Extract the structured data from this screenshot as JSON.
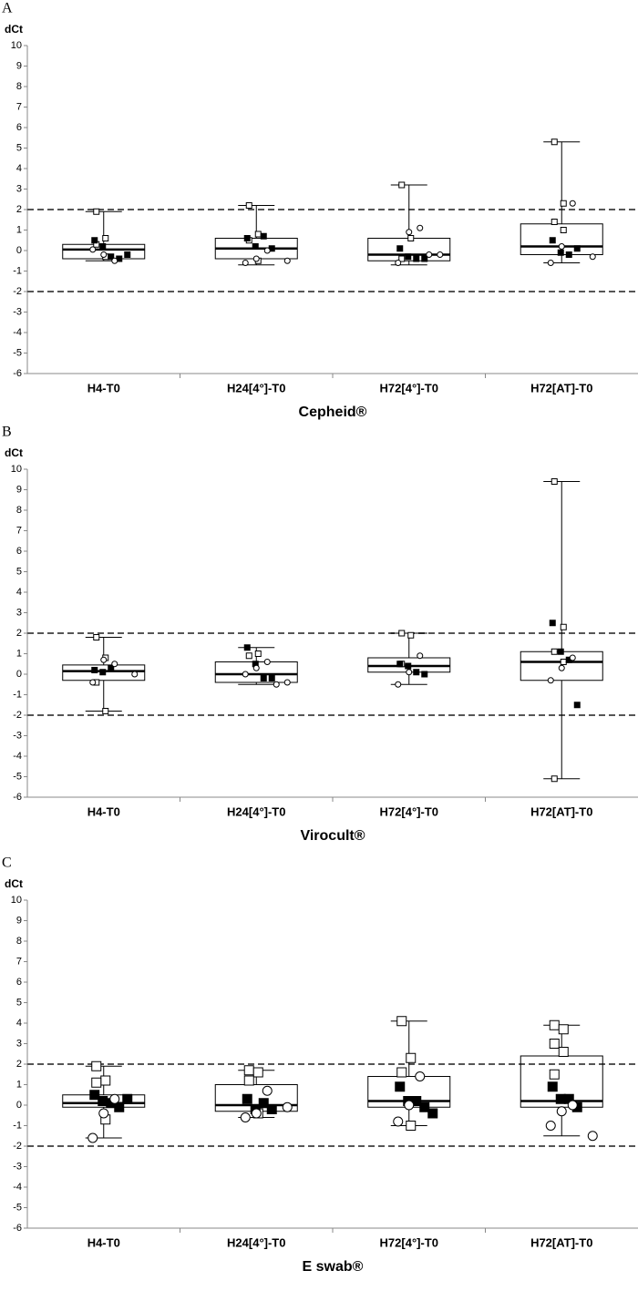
{
  "chart_data": [
    {
      "type": "box",
      "label": "A",
      "y_label": "dCt",
      "title": "Cepheid®",
      "categories": [
        "H4-T0",
        "H24[4°]-T0",
        "H72[4°]-T0",
        "H72[AT]-T0"
      ],
      "ylim": [
        -6,
        10
      ],
      "yticks": [
        -6,
        -5,
        -4,
        -3,
        -2,
        -1,
        0,
        1,
        2,
        3,
        4,
        5,
        6,
        7,
        8,
        9,
        10
      ],
      "reference_lines": [
        2,
        -2
      ],
      "boxes": [
        {
          "min": -0.5,
          "q1": -0.4,
          "median": 0.05,
          "q3": 0.3,
          "max": 1.9,
          "points": {
            "open_square": [
              1.9,
              0.6,
              0.3,
              -0.3
            ],
            "filled_square": [
              0.5,
              0.2,
              -0.3,
              -0.4,
              -0.2
            ],
            "open_circle": [
              -0.5,
              -0.2,
              0.05
            ]
          }
        },
        {
          "min": -0.7,
          "q1": -0.4,
          "median": 0.1,
          "q3": 0.6,
          "max": 2.2,
          "points": {
            "open_square": [
              2.2,
              0.8,
              0.5,
              -0.5
            ],
            "filled_square": [
              0.6,
              0.2,
              0.7,
              0.1
            ],
            "open_circle": [
              0,
              -0.4,
              -0.6,
              -0.5
            ]
          }
        },
        {
          "min": -0.7,
          "q1": -0.5,
          "median": -0.2,
          "q3": 0.6,
          "max": 3.2,
          "points": {
            "open_square": [
              3.2,
              0.6,
              -0.4
            ],
            "filled_square": [
              0.1,
              -0.3,
              -0.4,
              -0.4
            ],
            "open_circle": [
              1.1,
              0.9,
              -0.6,
              -0.2,
              -0.2
            ]
          }
        },
        {
          "min": -0.6,
          "q1": -0.2,
          "median": 0.2,
          "q3": 1.3,
          "max": 5.3,
          "points": {
            "open_square": [
              5.3,
              2.3,
              1.4,
              1.0
            ],
            "filled_square": [
              0.5,
              -0.1,
              -0.2,
              0.1
            ],
            "open_circle": [
              2.3,
              0.2,
              -0.6,
              -0.3
            ]
          }
        }
      ]
    },
    {
      "type": "box",
      "label": "B",
      "y_label": "dCt",
      "title": "Virocult®",
      "categories": [
        "H4-T0",
        "H24[4°]-T0",
        "H72[4°]-T0",
        "H72[AT]-T0"
      ],
      "ylim": [
        -6,
        10
      ],
      "yticks": [
        -6,
        -5,
        -4,
        -3,
        -2,
        -1,
        0,
        1,
        2,
        3,
        4,
        5,
        6,
        7,
        8,
        9,
        10
      ],
      "reference_lines": [
        2,
        -2
      ],
      "boxes": [
        {
          "min": -1.8,
          "q1": -0.3,
          "median": 0.15,
          "q3": 0.45,
          "max": 1.8,
          "points": {
            "open_square": [
              1.8,
              0.8,
              -0.4,
              -1.8
            ],
            "filled_square": [
              0.2,
              0.1,
              0.3
            ],
            "open_circle": [
              0.5,
              0.7,
              -0.4,
              0
            ]
          }
        },
        {
          "min": -0.5,
          "q1": -0.4,
          "median": 0,
          "q3": 0.6,
          "max": 1.3,
          "points": {
            "open_square": [
              0.9,
              1.0
            ],
            "filled_square": [
              1.3,
              0.5,
              -0.2,
              -0.2
            ],
            "open_circle": [
              0.6,
              0.3,
              0,
              -0.4,
              -0.5
            ]
          }
        },
        {
          "min": -0.5,
          "q1": 0.1,
          "median": 0.4,
          "q3": 0.8,
          "max": 2.0,
          "points": {
            "open_square": [
              2.0,
              1.9,
              0.5
            ],
            "filled_square": [
              0.5,
              0.4,
              0.1,
              0
            ],
            "open_circle": [
              0.9,
              0.1,
              -0.5
            ]
          }
        },
        {
          "min": -5.1,
          "q1": -0.3,
          "median": 0.6,
          "q3": 1.1,
          "max": 9.4,
          "points": {
            "open_square": [
              9.4,
              2.3,
              1.1,
              0.6,
              -5.1
            ],
            "filled_square": [
              2.5,
              1.1,
              0.7,
              -1.5
            ],
            "open_circle": [
              0.8,
              0.3,
              -0.3
            ]
          }
        }
      ]
    },
    {
      "type": "box",
      "label": "C",
      "y_label": "dCt",
      "title": "E swab®",
      "categories": [
        "H4-T0",
        "H24[4°]-T0",
        "H72[4°]-T0",
        "H72[AT]-T0"
      ],
      "ylim": [
        -6,
        10
      ],
      "yticks": [
        -6,
        -5,
        -4,
        -3,
        -2,
        -1,
        0,
        1,
        2,
        3,
        4,
        5,
        6,
        7,
        8,
        9,
        10
      ],
      "reference_lines": [
        2,
        -2
      ],
      "boxes": [
        {
          "min": -1.6,
          "q1": -0.1,
          "median": 0.1,
          "q3": 0.5,
          "max": 1.9,
          "points": {
            "open_square": [
              1.9,
              1.2,
              1.1,
              -0.7
            ],
            "filled_square": [
              0.5,
              0.2,
              0.1,
              -0.1,
              0.3
            ],
            "open_circle": [
              0.3,
              -0.4,
              -1.6
            ]
          }
        },
        {
          "min": -0.6,
          "q1": -0.3,
          "median": 0,
          "q3": 1.0,
          "max": 1.7,
          "points": {
            "open_square": [
              1.7,
              1.6,
              1.2,
              -0.4
            ],
            "filled_square": [
              0.3,
              -0.2,
              0.1,
              -0.2
            ],
            "open_circle": [
              0.7,
              -0.4,
              -0.6,
              -0.1
            ]
          }
        },
        {
          "min": -1.0,
          "q1": -0.1,
          "median": 0.2,
          "q3": 1.4,
          "max": 4.1,
          "points": {
            "open_square": [
              4.1,
              2.3,
              1.6,
              -1.0
            ],
            "filled_square": [
              0.9,
              0.2,
              0.2,
              -0.1,
              -0.4
            ],
            "open_circle": [
              1.4,
              0,
              -0.8
            ]
          }
        },
        {
          "min": -1.5,
          "q1": -0.1,
          "median": 0.2,
          "q3": 2.4,
          "max": 3.9,
          "points": {
            "open_square": [
              3.9,
              3.7,
              3.0,
              2.6,
              1.5
            ],
            "filled_square": [
              0.9,
              0.3,
              0.3,
              -0.1
            ],
            "open_circle": [
              0,
              -0.3,
              -1.0,
              -1.5
            ]
          }
        }
      ]
    }
  ]
}
